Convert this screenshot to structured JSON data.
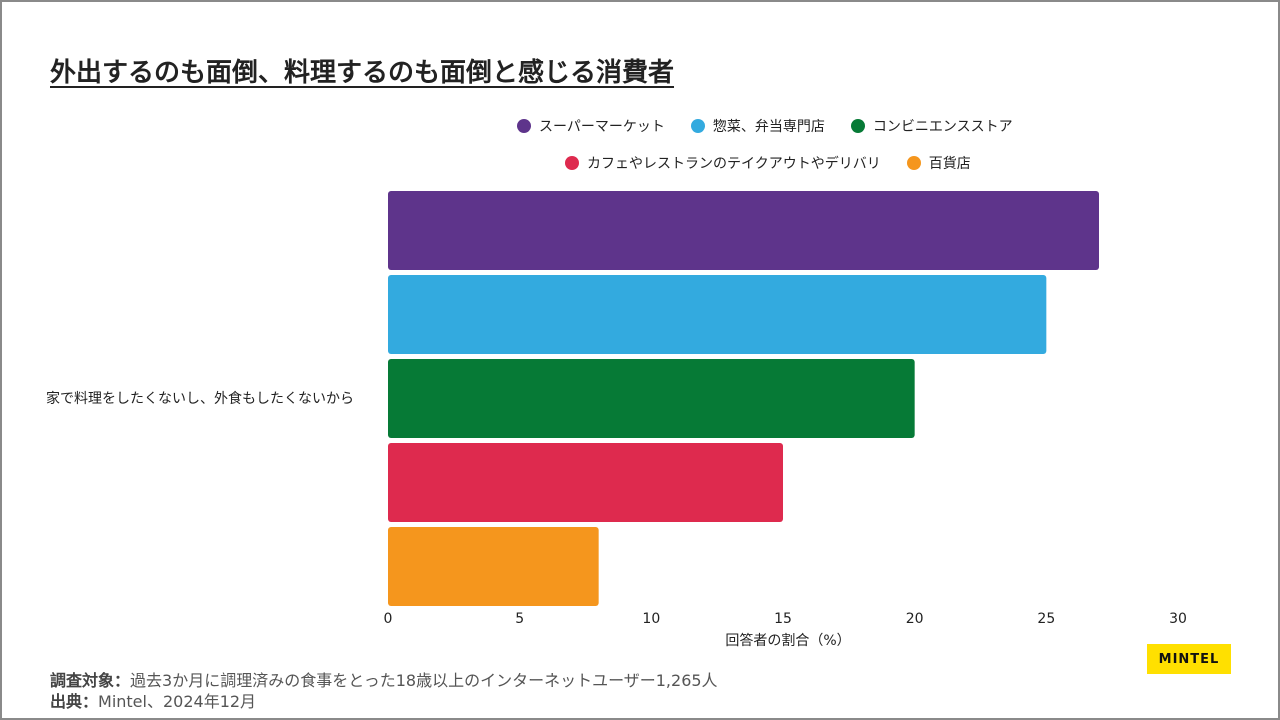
{
  "title": "外出するのも面倒、料理するのも面倒と感じる消費者",
  "colors": {
    "series": [
      "#5e348b",
      "#33aadf",
      "#067a36",
      "#de2a4e",
      "#f5961d"
    ],
    "logo_bg": "#ffe000"
  },
  "legend": [
    {
      "label": "スーパーマーケット",
      "color": "#5e348b"
    },
    {
      "label": "惣菜、弁当専門店",
      "color": "#33aadf"
    },
    {
      "label": "コンビニエンスストア",
      "color": "#067a36"
    },
    {
      "label": "カフェやレストランのテイクアウトやデリバリ",
      "color": "#de2a4e"
    },
    {
      "label": "百貨店",
      "color": "#f5961d"
    }
  ],
  "chart_data": {
    "type": "bar",
    "orientation": "horizontal",
    "categories": [
      "家で料理をしたくないし、外食もしたくないから"
    ],
    "series": [
      {
        "name": "スーパーマーケット",
        "values": [
          27
        ]
      },
      {
        "name": "惣菜、弁当専門店",
        "values": [
          25
        ]
      },
      {
        "name": "コンビニエンスストア",
        "values": [
          20
        ]
      },
      {
        "name": "カフェやレストランのテイクアウトやデリバリ",
        "values": [
          15
        ]
      },
      {
        "name": "百貨店",
        "values": [
          8
        ]
      }
    ],
    "xlabel": "回答者の割合（%）",
    "ylabel": "",
    "xlim": [
      0,
      30
    ],
    "xticks": [
      "0",
      "5",
      "10",
      "15",
      "20",
      "25",
      "30"
    ],
    "grid": false,
    "legend_position": "top"
  },
  "footer": {
    "survey_label": "調査対象：",
    "survey_text": "過去3か月に調理済みの食事をとった18歳以上のインターネットユーザー1,265人",
    "source_label": "出典：",
    "source_text": "Mintel、2024年12月"
  },
  "logo_text": "MINTEL"
}
